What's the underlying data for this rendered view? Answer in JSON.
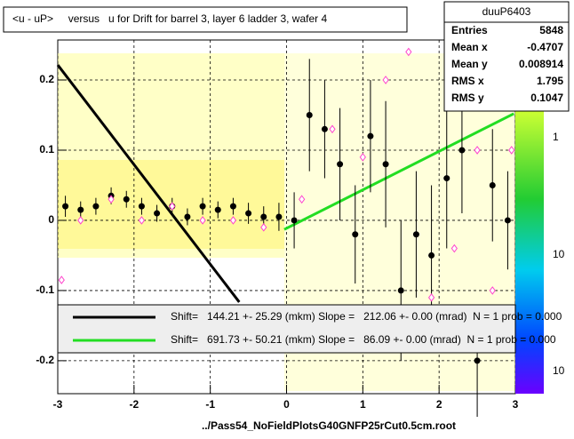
{
  "chart_data": {
    "type": "scatter",
    "title": "<u - uP>     versus   u for Drift for barrel 3, layer 6 ladder 3, wafer 4",
    "footer": "../Pass54_NoFieldPlotsG40GNFP25rCut0.5cm.root",
    "xlim": [
      -3,
      3
    ],
    "xticks": [
      -3,
      -2,
      -1,
      0,
      1,
      2,
      3
    ],
    "ylim": [
      -0.247,
      0.257
    ],
    "yticks": [
      -0.2,
      -0.1,
      0,
      0.1,
      0.2
    ],
    "grid": true,
    "series": [
      {
        "color": "#000000",
        "x": [
          -2.9,
          -2.7,
          -2.5,
          -2.3,
          -2.1,
          -1.9,
          -1.7,
          -1.5,
          -1.3,
          -1.1,
          -0.9,
          -0.7,
          -0.5,
          -0.3,
          -0.1,
          0.1,
          0.3,
          0.5,
          0.7,
          0.9,
          1.1,
          1.3,
          1.5,
          1.7,
          1.9,
          2.1,
          2.3,
          2.5,
          2.7,
          2.9
        ],
        "values": [
          0.02,
          0.015,
          0.02,
          0.035,
          0.03,
          0.02,
          0.01,
          0.02,
          0.005,
          0.02,
          0.015,
          0.02,
          0.01,
          0.005,
          0.005,
          0.0,
          0.15,
          0.13,
          0.08,
          -0.02,
          0.12,
          0.08,
          -0.1,
          -0.02,
          -0.05,
          0.06,
          0.1,
          -0.2,
          0.05,
          0.0
        ],
        "errors": [
          0.015,
          0.012,
          0.012,
          0.012,
          0.012,
          0.012,
          0.012,
          0.012,
          0.012,
          0.012,
          0.012,
          0.012,
          0.015,
          0.015,
          0.02,
          0.04,
          0.08,
          0.07,
          0.08,
          0.07,
          0.08,
          0.09,
          0.1,
          0.09,
          0.1,
          0.1,
          0.09,
          0.08,
          0.08,
          0.07
        ]
      },
      {
        "color": "#ff44cc",
        "x": [
          -2.95,
          -2.7,
          -2.3,
          -1.9,
          -1.5,
          -1.1,
          -0.7,
          -0.3,
          0.2,
          0.6,
          1.0,
          1.3,
          1.6,
          1.9,
          2.2,
          2.5,
          2.7,
          2.95
        ],
        "values": [
          -0.085,
          0.0,
          0.03,
          0.0,
          0.02,
          0.0,
          0.0,
          -0.01,
          0.03,
          0.13,
          0.09,
          0.2,
          0.24,
          -0.11,
          -0.04,
          0.1,
          -0.1,
          0.1
        ]
      }
    ],
    "fits": [
      {
        "color": "#000000",
        "x": [
          -3,
          -0.62
        ],
        "y": [
          0.2215,
          -0.1165
        ],
        "label": "Shift=   144.21 +- 25.29 (mkm) Slope =   212.06 +- 0.00 (mrad)  N = 1 prob = 0.000"
      },
      {
        "color": "#22dd22",
        "x": [
          -0.03,
          2.98
        ],
        "y": [
          -0.013,
          0.152
        ],
        "label": "Shift=   691.73 +- 50.21 (mkm) Slope =   86.09 +- 0.00 (mrad)  N = 1 prob = 0.000"
      }
    ],
    "stats": {
      "title": "duuP6403",
      "rows": [
        [
          "Entries",
          "5848"
        ],
        [
          "Mean x",
          "-0.4707"
        ],
        [
          "Mean y",
          "0.008914"
        ],
        [
          "RMS x",
          "1.795"
        ],
        [
          "RMS y",
          "0.1047"
        ]
      ]
    },
    "palette_labels": [
      "1",
      "10",
      "10"
    ]
  }
}
